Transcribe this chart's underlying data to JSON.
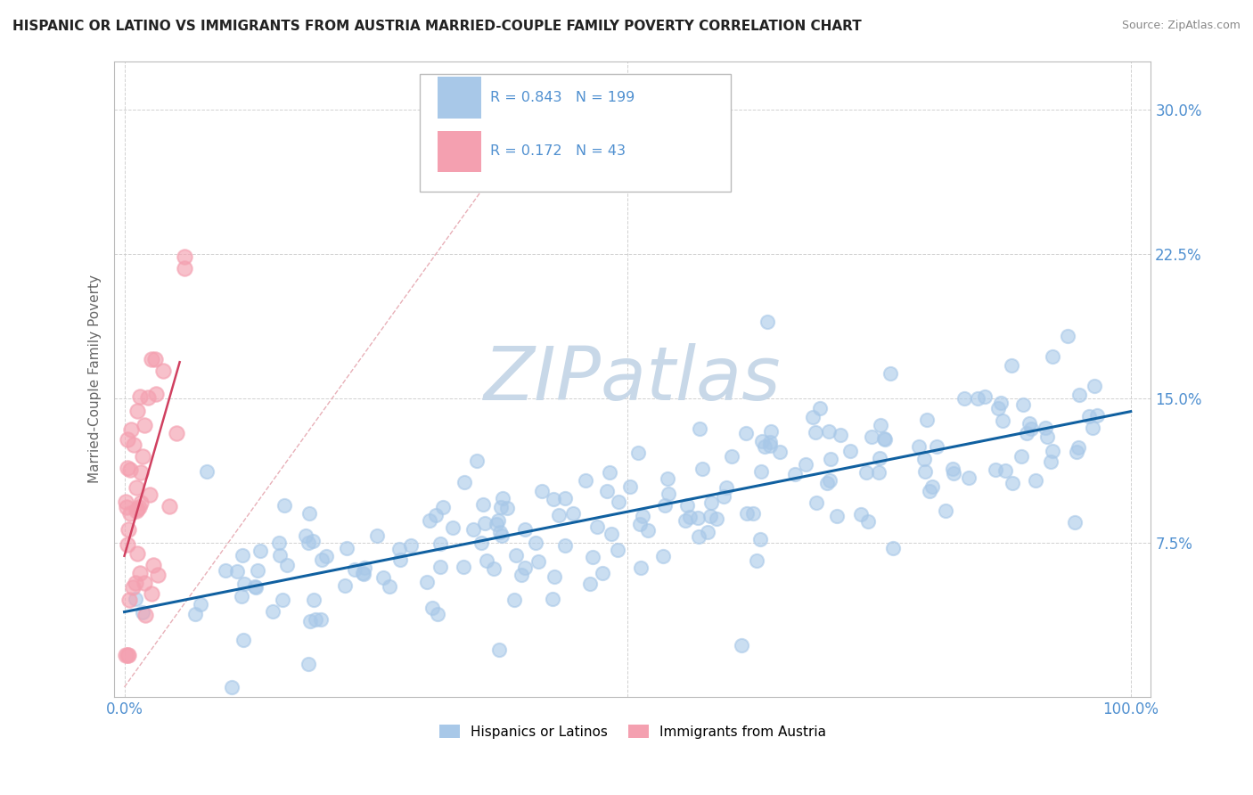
{
  "title": "HISPANIC OR LATINO VS IMMIGRANTS FROM AUSTRIA MARRIED-COUPLE FAMILY POVERTY CORRELATION CHART",
  "source": "Source: ZipAtlas.com",
  "ylabel": "Married-Couple Family Poverty",
  "r_hispanic": 0.843,
  "n_hispanic": 199,
  "r_austria": 0.172,
  "n_austria": 43,
  "xlim": [
    -0.01,
    1.02
  ],
  "ylim": [
    -0.005,
    0.325
  ],
  "ytick_vals": [
    0.075,
    0.15,
    0.225,
    0.3
  ],
  "ytick_labels": [
    "7.5%",
    "15.0%",
    "22.5%",
    "30.0%"
  ],
  "color_hispanic": "#a8c8e8",
  "color_austria": "#f4a0b0",
  "trendline_hispanic": "#1060a0",
  "trendline_austria": "#d04060",
  "diagonal_color": "#e8b0b8",
  "watermark_color": "#c8d8e8",
  "background_color": "#ffffff",
  "grid_color": "#cccccc",
  "tick_color": "#5090d0",
  "title_color": "#222222",
  "ylabel_color": "#666666"
}
